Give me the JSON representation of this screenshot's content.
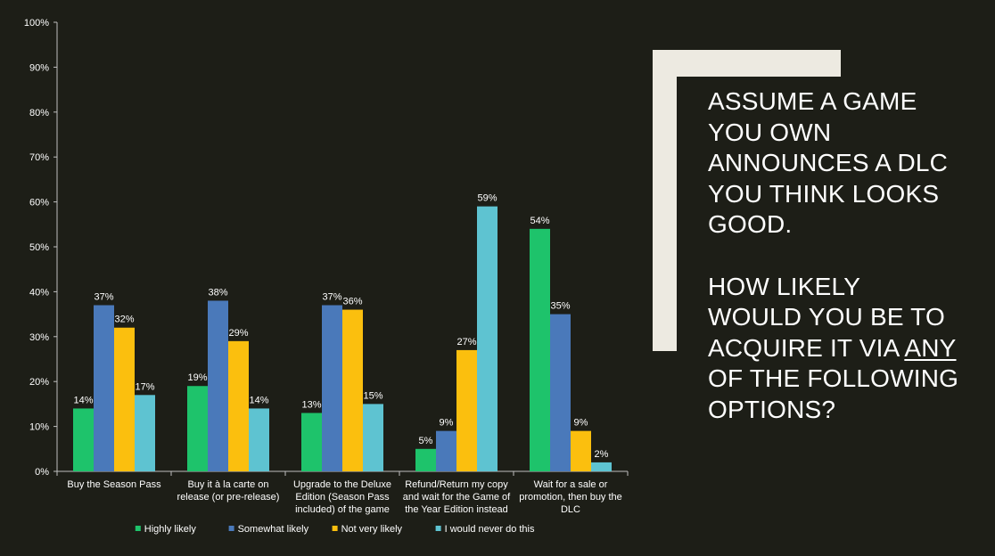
{
  "chart_data": {
    "type": "bar",
    "categories": [
      [
        "Buy the Season Pass"
      ],
      [
        "Buy it à la carte on",
        "release (or pre-release)"
      ],
      [
        "Upgrade to the Deluxe",
        "Edition (Season Pass",
        "included) of the game"
      ],
      [
        "Refund/Return my copy",
        "and wait for the Game of",
        "the Year Edition instead"
      ],
      [
        "Wait for a sale or",
        "promotion, then buy the",
        "DLC"
      ]
    ],
    "series": [
      {
        "name": "Highly likely",
        "color": "#1ec36b",
        "values": [
          14,
          19,
          13,
          5,
          54
        ],
        "labels": [
          "14%",
          "19%",
          "13%",
          "5%",
          "54%"
        ]
      },
      {
        "name": "Somewhat likely",
        "color": "#4a79ba",
        "values": [
          37,
          38,
          37,
          9,
          35
        ],
        "labels": [
          "37%",
          "38%",
          "37%",
          "9%",
          "35%"
        ]
      },
      {
        "name": "Not very likely",
        "color": "#fbbf0e",
        "values": [
          32,
          29,
          36,
          27,
          9
        ],
        "labels": [
          "32%",
          "29%",
          "36%",
          "27%",
          "9%"
        ]
      },
      {
        "name": "I would never do this",
        "color": "#5ec3d1",
        "values": [
          17,
          14,
          15,
          59,
          2
        ],
        "labels": [
          "17%",
          "14%",
          "15%",
          "59%",
          "2%"
        ]
      }
    ],
    "yticks": [
      "0%",
      "10%",
      "20%",
      "30%",
      "40%",
      "50%",
      "60%",
      "70%",
      "80%",
      "90%",
      "100%"
    ],
    "ylim": [
      0,
      100
    ],
    "grid": false,
    "legend": "bottom"
  },
  "headline": {
    "line1": "ASSUME A GAME",
    "line2": "YOU OWN",
    "line3": "ANNOUNCES A DLC",
    "line4": "YOU THINK LOOKS",
    "line5": "GOOD.",
    "line6": "HOW LIKELY",
    "line7": "WOULD YOU BE TO",
    "line8_pre": "ACQUIRE IT VIA ",
    "line8_em": "ANY",
    "line9": "OF THE FOLLOWING",
    "line10": "OPTIONS?"
  },
  "colors": {
    "background": "#1d1e17",
    "bracket": "#edeae1"
  }
}
